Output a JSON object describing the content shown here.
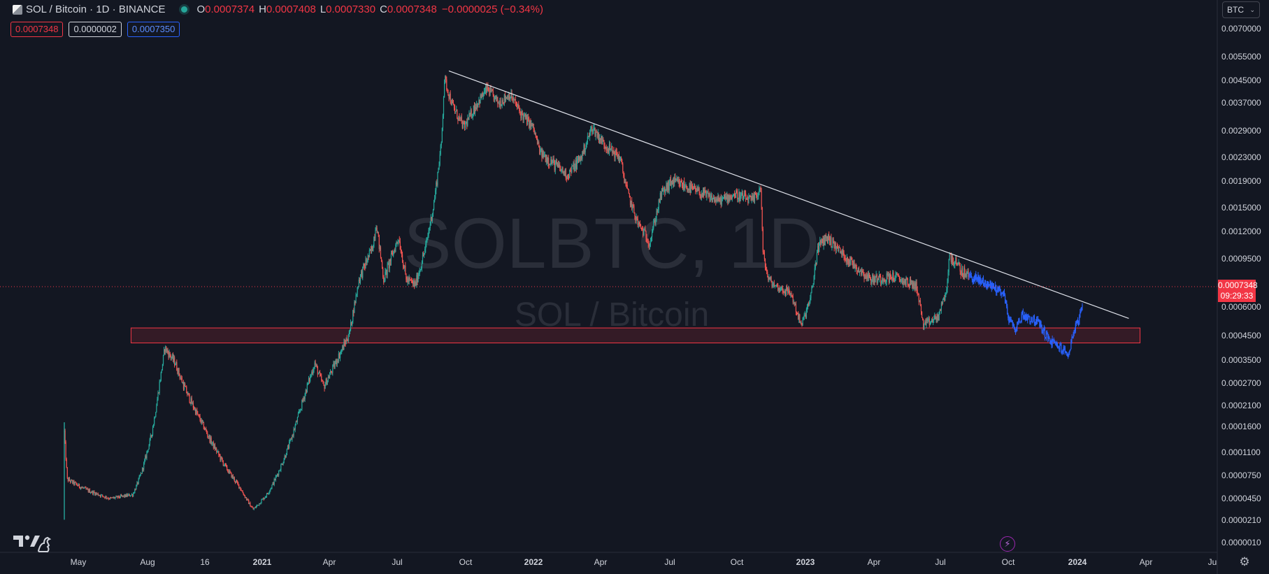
{
  "header": {
    "symbol": "SOL / Bitcoin · 1D · BINANCE",
    "ohlc": {
      "o_label": "O",
      "o": "0.0007374",
      "h_label": "H",
      "h": "0.0007408",
      "l_label": "L",
      "l": "0.0007330",
      "c_label": "C",
      "c": "0.0007348",
      "change": "−0.0000025 (−0.34%)"
    },
    "bid": "0.0007348",
    "spread": "0.0000002",
    "ask": "0.0007350",
    "currency": "BTC"
  },
  "watermark": {
    "symbol": "SOLBTC, 1D",
    "name": "SOL / Bitcoin"
  },
  "price_badge": {
    "price": "0.0007348",
    "countdown": "09:29:33"
  },
  "colors": {
    "up": "#26a69a",
    "down": "#ef5350",
    "blue": "#2962ff",
    "trendline": "#e0e3eb",
    "zone": "#f23645",
    "bg": "#131722"
  },
  "icons": {
    "logo": "tradingview-logo-icon",
    "flash": "lightning-icon",
    "settings": "gear-icon",
    "chevron": "chevron-down-icon"
  },
  "chart_data": {
    "type": "candlestick",
    "title": "SOL / Bitcoin · 1D · BINANCE",
    "y_scale": "log",
    "y_ticks": [
      "0.0070000",
      "0.0055000",
      "0.0045000",
      "0.0037000",
      "0.0029000",
      "0.0023000",
      "0.0019000",
      "0.0015000",
      "0.0012000",
      "0.0009500",
      "0.0006000",
      "0.0004500",
      "0.0003500",
      "0.0002700",
      "0.0002100",
      "0.0001600",
      "0.0001100",
      "0.0000750",
      "0.0000450",
      "0.0000210",
      "0.0000010"
    ],
    "x_ticks": [
      "May",
      "Aug",
      "16",
      "2021",
      "Apr",
      "Jul",
      "Oct",
      "2022",
      "Apr",
      "Jul",
      "Oct",
      "2023",
      "Apr",
      "Jul",
      "Oct",
      "2024",
      "Apr",
      "Ju"
    ],
    "last_price": 0.0007348,
    "price_path": [
      [
        "2020-04-20",
        0.00015
      ],
      [
        "2020-04-24",
        7e-05
      ],
      [
        "2020-05-20",
        5.6e-05
      ],
      [
        "2020-06-20",
        4.5e-05
      ],
      [
        "2020-07-20",
        5e-05
      ],
      [
        "2020-08-01",
        8e-05
      ],
      [
        "2020-08-15",
        0.00015
      ],
      [
        "2020-08-25",
        0.00027
      ],
      [
        "2020-09-01",
        0.0004
      ],
      [
        "2020-09-15",
        0.00034
      ],
      [
        "2020-09-25",
        0.00027
      ],
      [
        "2020-10-20",
        0.00017
      ],
      [
        "2020-11-20",
        9e-05
      ],
      [
        "2020-12-10",
        6e-05
      ],
      [
        "2020-12-28",
        3.3e-05
      ],
      [
        "2021-01-15",
        5e-05
      ],
      [
        "2021-02-10",
        0.00011
      ],
      [
        "2021-03-05",
        0.00023
      ],
      [
        "2021-03-20",
        0.00034
      ],
      [
        "2021-04-01",
        0.00026
      ],
      [
        "2021-04-20",
        0.00036
      ],
      [
        "2021-05-05",
        0.00046
      ],
      [
        "2021-05-18",
        0.0008
      ],
      [
        "2021-06-05",
        0.00105
      ],
      [
        "2021-06-10",
        0.0013
      ],
      [
        "2021-06-20",
        0.0008
      ],
      [
        "2021-07-10",
        0.00115
      ],
      [
        "2021-07-20",
        0.0008
      ],
      [
        "2021-08-01",
        0.00076
      ],
      [
        "2021-08-15",
        0.00105
      ],
      [
        "2021-08-25",
        0.0015
      ],
      [
        "2021-09-05",
        0.0026
      ],
      [
        "2021-09-09",
        0.0046
      ],
      [
        "2021-09-20",
        0.0036
      ],
      [
        "2021-10-05",
        0.003
      ],
      [
        "2021-10-20",
        0.0036
      ],
      [
        "2021-11-05",
        0.0042
      ],
      [
        "2021-11-20",
        0.0037
      ],
      [
        "2021-12-05",
        0.004
      ],
      [
        "2021-12-20",
        0.0034
      ],
      [
        "2022-01-05",
        0.003
      ],
      [
        "2022-01-15",
        0.0024
      ],
      [
        "2022-02-01",
        0.0022
      ],
      [
        "2022-02-20",
        0.002
      ],
      [
        "2022-03-10",
        0.0023
      ],
      [
        "2022-03-25",
        0.003
      ],
      [
        "2022-04-10",
        0.0026
      ],
      [
        "2022-05-01",
        0.0023
      ],
      [
        "2022-05-12",
        0.0017
      ],
      [
        "2022-05-25",
        0.0013
      ],
      [
        "2022-06-10",
        0.0011
      ],
      [
        "2022-06-25",
        0.0017
      ],
      [
        "2022-07-10",
        0.0019
      ],
      [
        "2022-08-01",
        0.0018
      ],
      [
        "2022-08-20",
        0.0017
      ],
      [
        "2022-09-10",
        0.0016
      ],
      [
        "2022-10-01",
        0.0017
      ],
      [
        "2022-10-25",
        0.0016
      ],
      [
        "2022-11-05",
        0.0018
      ],
      [
        "2022-11-08",
        0.001
      ],
      [
        "2022-11-15",
        0.0008
      ],
      [
        "2022-11-25",
        0.00075
      ],
      [
        "2022-12-15",
        0.0007
      ],
      [
        "2022-12-29",
        0.0005
      ],
      [
        "2023-01-10",
        0.00065
      ],
      [
        "2023-01-20",
        0.00105
      ],
      [
        "2023-02-01",
        0.00115
      ],
      [
        "2023-03-01",
        0.00095
      ],
      [
        "2023-04-01",
        0.0008
      ],
      [
        "2023-05-01",
        0.00082
      ],
      [
        "2023-06-01",
        0.00075
      ],
      [
        "2023-06-10",
        0.0005
      ],
      [
        "2023-06-30",
        0.00055
      ],
      [
        "2023-07-10",
        0.0007
      ],
      [
        "2023-07-15",
        0.00098
      ],
      [
        "2023-08-01",
        0.00085
      ],
      [
        "2023-08-20",
        0.0008
      ],
      [
        "2023-09-10",
        0.00075
      ],
      [
        "2023-09-25",
        0.0007
      ],
      [
        "2023-10-01",
        0.00055
      ],
      [
        "2023-10-10",
        0.00048
      ],
      [
        "2023-10-20",
        0.00056
      ],
      [
        "2023-11-10",
        0.00052
      ],
      [
        "2023-11-25",
        0.00043
      ],
      [
        "2023-12-10",
        0.0004
      ],
      [
        "2023-12-20",
        0.00037
      ],
      [
        "2023-12-28",
        0.00048
      ],
      [
        "2024-01-05",
        0.00055
      ],
      [
        "2024-01-08",
        0.00059
      ]
    ],
    "annotations": [
      {
        "type": "trendline",
        "from": [
          "2021-09-15",
          0.0049
        ],
        "to": [
          "2024-03-10",
          0.00054
        ]
      },
      {
        "type": "support_zone",
        "from_date": "2020-07-18",
        "to_date": "2024-03-25",
        "low": 0.00042,
        "high": 0.00049
      }
    ]
  }
}
